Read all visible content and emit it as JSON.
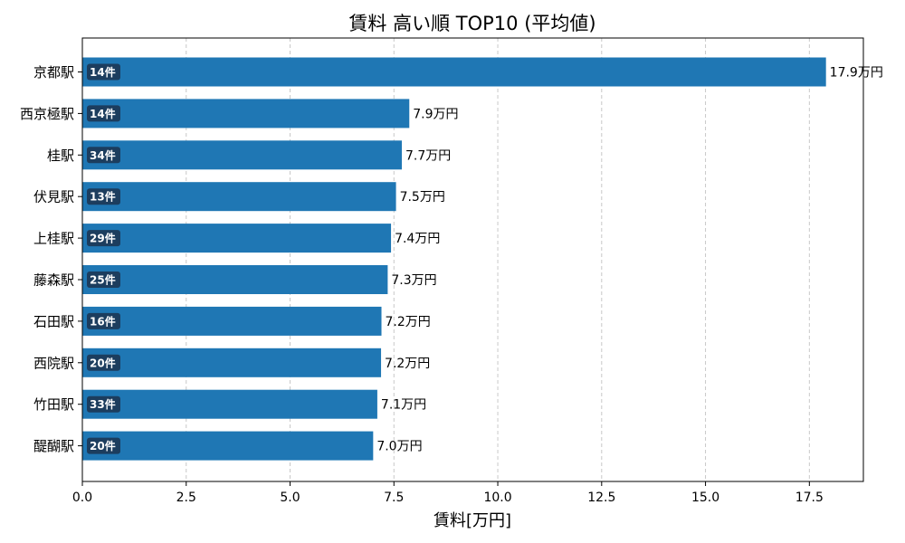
{
  "chart_data": {
    "type": "bar",
    "orientation": "horizontal",
    "title": "賃料 高い順 TOP10 (平均値)",
    "xlabel": "賃料[万円]",
    "ylabel": "",
    "xlim": [
      0,
      18.8
    ],
    "xticks": [
      "0.0",
      "2.5",
      "5.0",
      "7.5",
      "10.0",
      "12.5",
      "15.0",
      "17.5"
    ],
    "xtick_values": [
      0,
      2.5,
      5,
      7.5,
      10,
      12.5,
      15,
      17.5
    ],
    "grid": "x-dashed",
    "bar_color": "#1f77b4",
    "badge_color": "#1c3d5e",
    "categories": [
      "京都駅",
      "西京極駅",
      "桂駅",
      "伏見駅",
      "上桂駅",
      "藤森駅",
      "石田駅",
      "西院駅",
      "竹田駅",
      "醍醐駅"
    ],
    "values": [
      17.9,
      7.87,
      7.69,
      7.55,
      7.43,
      7.35,
      7.2,
      7.19,
      7.1,
      7.0
    ],
    "value_labels": [
      "17.9万円",
      "7.9万円",
      "7.7万円",
      "7.5万円",
      "7.4万円",
      "7.3万円",
      "7.2万円",
      "7.2万円",
      "7.1万円",
      "7.0万円"
    ],
    "counts": [
      "14件",
      "14件",
      "34件",
      "13件",
      "29件",
      "25件",
      "16件",
      "20件",
      "33件",
      "20件"
    ]
  }
}
